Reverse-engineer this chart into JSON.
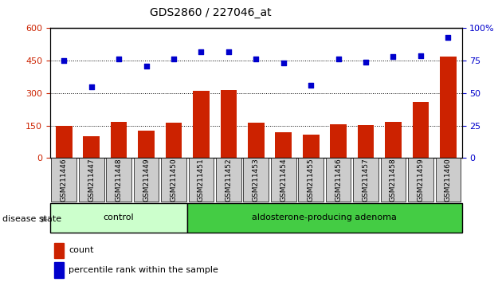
{
  "title": "GDS2860 / 227046_at",
  "samples": [
    "GSM211446",
    "GSM211447",
    "GSM211448",
    "GSM211449",
    "GSM211450",
    "GSM211451",
    "GSM211452",
    "GSM211453",
    "GSM211454",
    "GSM211455",
    "GSM211456",
    "GSM211457",
    "GSM211458",
    "GSM211459",
    "GSM211460"
  ],
  "counts": [
    148,
    100,
    165,
    128,
    162,
    310,
    315,
    163,
    120,
    108,
    155,
    152,
    165,
    258,
    470
  ],
  "percentiles": [
    75,
    55,
    76,
    71,
    76,
    82,
    82,
    76,
    73,
    56,
    76,
    74,
    78,
    79,
    93
  ],
  "control_count": 5,
  "adenoma_count": 10,
  "ylim_left": [
    0,
    600
  ],
  "ylim_right": [
    0,
    100
  ],
  "yticks_left": [
    0,
    150,
    300,
    450,
    600
  ],
  "yticks_right": [
    0,
    25,
    50,
    75,
    100
  ],
  "bar_color": "#cc2200",
  "dot_color": "#0000cc",
  "control_bg": "#ccffcc",
  "adenoma_bg": "#44cc44",
  "tick_label_bg": "#cccccc",
  "legend_count_label": "count",
  "legend_percentile_label": "percentile rank within the sample",
  "disease_state_label": "disease state",
  "control_label": "control",
  "adenoma_label": "aldosterone-producing adenoma"
}
